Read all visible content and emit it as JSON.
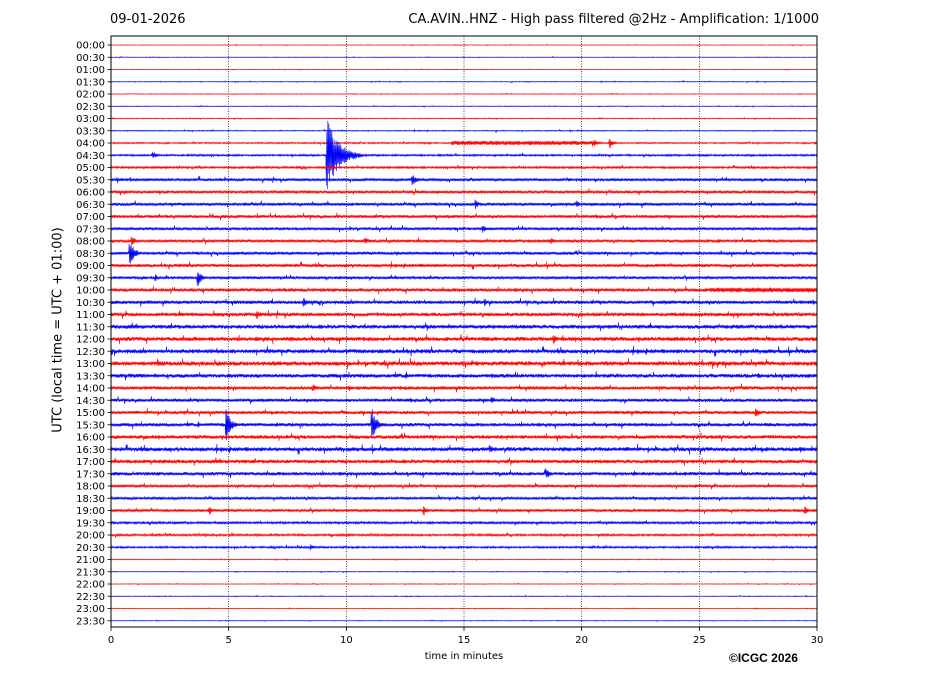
{
  "header": {
    "date": "09-01-2026",
    "title": "CA.AVIN..HNZ - High pass filtered @2Hz - Amplification: 1/1000"
  },
  "footer": {
    "copyright": "©ICGC 2026"
  },
  "chart_data": {
    "type": "line",
    "title": "CA.AVIN..HNZ - High pass filtered @2Hz - Amplification: 1/1000",
    "xlabel": "time in minutes",
    "ylabel": "UTC (local time = UTC + 01:00)",
    "xlim": [
      0,
      30
    ],
    "x_ticks": [
      0,
      5,
      10,
      15,
      20,
      25,
      30
    ],
    "rows": [
      "00:00",
      "00:30",
      "01:00",
      "01:30",
      "02:00",
      "02:30",
      "03:00",
      "03:30",
      "04:00",
      "04:30",
      "05:00",
      "05:30",
      "06:00",
      "06:30",
      "07:00",
      "07:30",
      "08:00",
      "08:30",
      "09:00",
      "09:30",
      "10:00",
      "10:30",
      "11:00",
      "11:30",
      "12:00",
      "12:30",
      "13:00",
      "13:30",
      "14:00",
      "14:30",
      "15:00",
      "15:30",
      "16:00",
      "16:30",
      "17:00",
      "17:30",
      "18:00",
      "18:30",
      "19:00",
      "19:30",
      "20:00",
      "20:30",
      "21:00",
      "21:30",
      "22:00",
      "22:30",
      "23:00",
      "23:30"
    ],
    "trace_colors": [
      "#ff0000",
      "#0000ff"
    ],
    "grid": true,
    "noise_level": [
      0.25,
      0.25,
      0.25,
      0.3,
      0.3,
      0.3,
      0.35,
      0.4,
      0.6,
      0.8,
      0.9,
      1.2,
      1.3,
      1.3,
      1.3,
      1.2,
      1.3,
      1.3,
      1.4,
      1.2,
      1.5,
      1.5,
      1.6,
      1.7,
      1.8,
      1.8,
      1.9,
      1.7,
      1.5,
      1.4,
      1.4,
      1.5,
      1.6,
      1.8,
      1.6,
      1.5,
      1.2,
      1.1,
      1.2,
      1.0,
      0.9,
      0.8,
      0.35,
      0.3,
      0.3,
      0.3,
      0.3,
      0.25
    ],
    "events": [
      {
        "row": 8,
        "minute": 14.5,
        "duration": 6.0,
        "amplitude": 2.2
      },
      {
        "row": 8,
        "minute": 20.5,
        "duration": 0.6,
        "amplitude": 4.5
      },
      {
        "row": 8,
        "minute": 21.2,
        "duration": 0.5,
        "amplitude": 5.5
      },
      {
        "row": 9,
        "minute": 1.8,
        "duration": 0.5,
        "amplitude": 4.0
      },
      {
        "row": 9,
        "minute": 9.2,
        "duration": 1.5,
        "amplitude": 36
      },
      {
        "row": 11,
        "minute": 12.8,
        "duration": 0.6,
        "amplitude": 6.0
      },
      {
        "row": 13,
        "minute": 15.5,
        "duration": 0.4,
        "amplitude": 5.0
      },
      {
        "row": 13,
        "minute": 19.8,
        "duration": 0.4,
        "amplitude": 4.0
      },
      {
        "row": 15,
        "minute": 15.8,
        "duration": 0.5,
        "amplitude": 4.5
      },
      {
        "row": 16,
        "minute": 0.9,
        "duration": 0.5,
        "amplitude": 5.0
      },
      {
        "row": 16,
        "minute": 10.8,
        "duration": 0.8,
        "amplitude": 3.5
      },
      {
        "row": 16,
        "minute": 18.7,
        "duration": 0.7,
        "amplitude": 3.5
      },
      {
        "row": 17,
        "minute": 0.8,
        "duration": 0.7,
        "amplitude": 12
      },
      {
        "row": 19,
        "minute": 1.9,
        "duration": 0.3,
        "amplitude": 4.0
      },
      {
        "row": 19,
        "minute": 3.7,
        "duration": 0.5,
        "amplitude": 9.0
      },
      {
        "row": 20,
        "minute": 25.5,
        "duration": 4.5,
        "amplitude": 2.5
      },
      {
        "row": 21,
        "minute": 8.2,
        "duration": 0.4,
        "amplitude": 5.0
      },
      {
        "row": 21,
        "minute": 15.9,
        "duration": 0.4,
        "amplitude": 4.0
      },
      {
        "row": 22,
        "minute": 6.2,
        "duration": 0.6,
        "amplitude": 4.5
      },
      {
        "row": 24,
        "minute": 18.8,
        "duration": 0.6,
        "amplitude": 5.0
      },
      {
        "row": 26,
        "minute": 2.0,
        "duration": 0.5,
        "amplitude": 5.0
      },
      {
        "row": 28,
        "minute": 8.6,
        "duration": 0.5,
        "amplitude": 4.0
      },
      {
        "row": 29,
        "minute": 16.2,
        "duration": 0.5,
        "amplitude": 4.0
      },
      {
        "row": 30,
        "minute": 27.4,
        "duration": 0.6,
        "amplitude": 4.5
      },
      {
        "row": 31,
        "minute": 4.9,
        "duration": 0.6,
        "amplitude": 17
      },
      {
        "row": 31,
        "minute": 11.1,
        "duration": 0.6,
        "amplitude": 17
      },
      {
        "row": 33,
        "minute": 16.1,
        "duration": 0.5,
        "amplitude": 5.0
      },
      {
        "row": 33,
        "minute": 29.3,
        "duration": 0.4,
        "amplitude": 4.0
      },
      {
        "row": 35,
        "minute": 18.5,
        "duration": 0.5,
        "amplitude": 6.0
      },
      {
        "row": 38,
        "minute": 4.2,
        "duration": 0.4,
        "amplitude": 4.0
      },
      {
        "row": 38,
        "minute": 13.3,
        "duration": 0.5,
        "amplitude": 5.0
      },
      {
        "row": 38,
        "minute": 29.5,
        "duration": 0.4,
        "amplitude": 4.5
      },
      {
        "row": 41,
        "minute": 8.5,
        "duration": 0.5,
        "amplitude": 3.0
      }
    ]
  }
}
